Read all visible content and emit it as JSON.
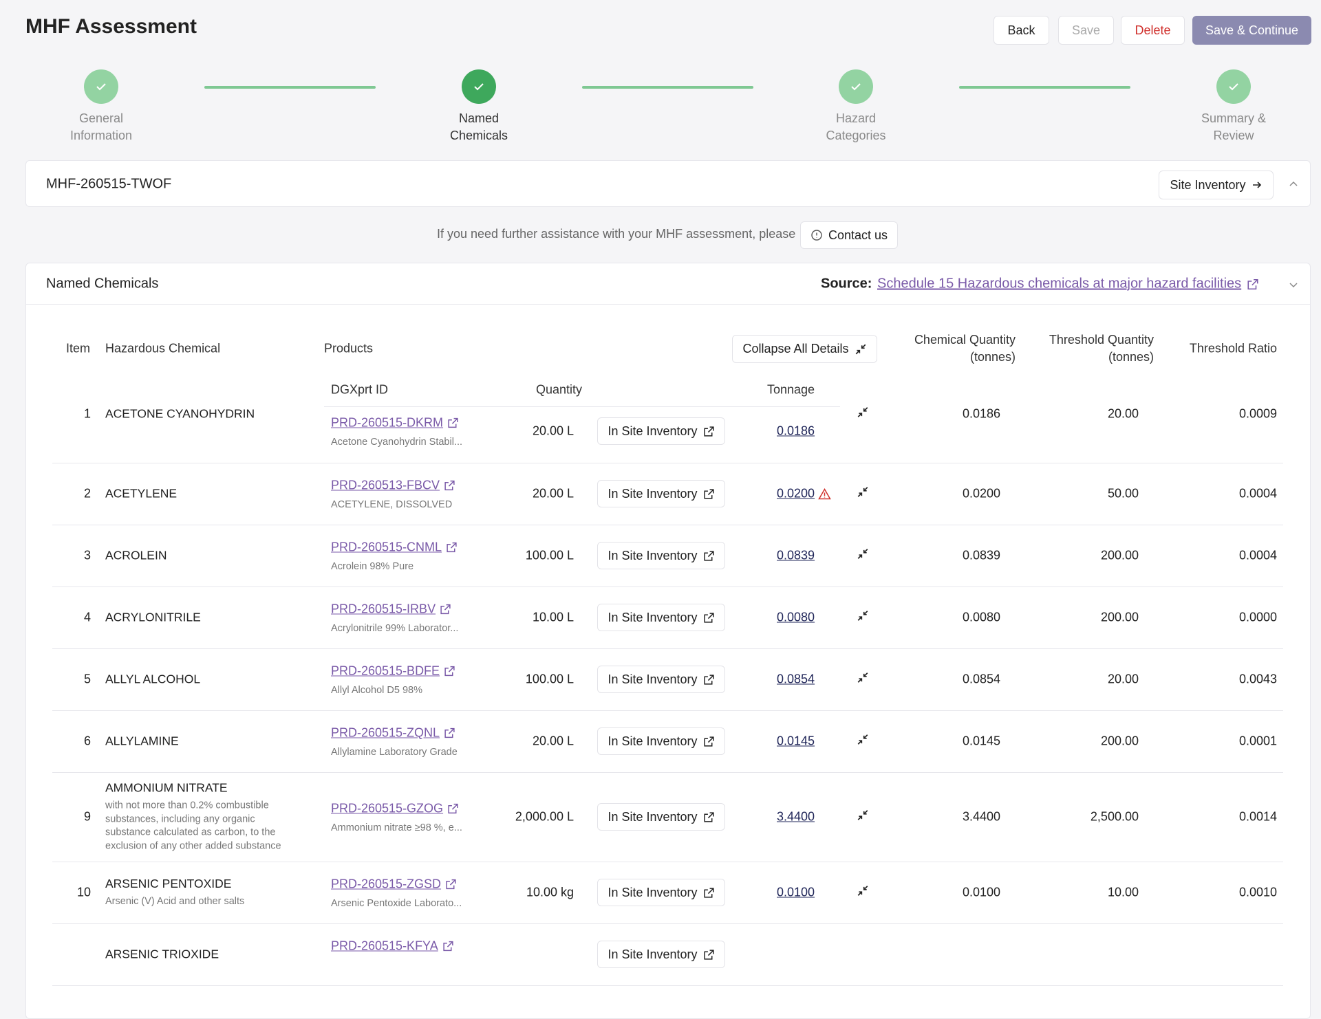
{
  "header": {
    "title": "MHF Assessment",
    "buttons": [
      "Back",
      "Save",
      "Delete",
      "Save & Continue"
    ]
  },
  "steps": [
    "General Information",
    "Named Chemicals",
    "Hazard Categories",
    "Summary & Review"
  ],
  "assessment": {
    "id": "MHF-260515-TWOF",
    "site_inventory": "Site Inventory"
  },
  "assistance": {
    "text": "If you need further assistance with your MHF assessment, please",
    "button": "Contact us"
  },
  "section": {
    "title": "Named Chemicals",
    "source_label": "Source:",
    "source_link": "Schedule 15 Hazardous chemicals at major hazard facilities"
  },
  "table": {
    "columns": [
      "Item",
      "Hazardous Chemical",
      "Products",
      "Chemical Quantity (tonnes)",
      "Threshold Quantity (tonnes)",
      "Threshold Ratio"
    ],
    "collapse_button": "Collapse All Details",
    "product_columns": [
      "DGXprt ID",
      "Quantity",
      "Tonnage"
    ],
    "inventory_label": "In Site Inventory",
    "rows": [
      {
        "item": "1",
        "chemical": "ACETONE CYANOHYDRIN",
        "product_id": "PRD-260515-DKRM",
        "product_name": "Acetone Cyanohydrin Stabil...",
        "quantity": "20.00 L",
        "tonnage": "0.0186",
        "chemical_quantity": "0.0186",
        "threshold_quantity": "20.00",
        "threshold_ratio": "0.0009"
      },
      {
        "item": "2",
        "chemical": "ACETYLENE",
        "product_id": "PRD-260513-FBCV",
        "product_name": "ACETYLENE, DISSOLVED",
        "quantity": "20.00 L",
        "tonnage": "0.0200",
        "warning": true,
        "chemical_quantity": "0.0200",
        "threshold_quantity": "50.00",
        "threshold_ratio": "0.0004"
      },
      {
        "item": "3",
        "chemical": "ACROLEIN",
        "product_id": "PRD-260515-CNML",
        "product_name": "Acrolein 98% Pure",
        "quantity": "100.00 L",
        "tonnage": "0.0839",
        "chemical_quantity": "0.0839",
        "threshold_quantity": "200.00",
        "threshold_ratio": "0.0004"
      },
      {
        "item": "4",
        "chemical": "ACRYLONITRILE",
        "product_id": "PRD-260515-IRBV",
        "product_name": "Acrylonitrile 99% Laborator...",
        "quantity": "10.00 L",
        "tonnage": "0.0080",
        "chemical_quantity": "0.0080",
        "threshold_quantity": "200.00",
        "threshold_ratio": "0.0000"
      },
      {
        "item": "5",
        "chemical": "ALLYL ALCOHOL",
        "product_id": "PRD-260515-BDFE",
        "product_name": "Allyl Alcohol D5 98%",
        "quantity": "100.00 L",
        "tonnage": "0.0854",
        "chemical_quantity": "0.0854",
        "threshold_quantity": "20.00",
        "threshold_ratio": "0.0043"
      },
      {
        "item": "6",
        "chemical": "ALLYLAMINE",
        "product_id": "PRD-260515-ZQNL",
        "product_name": "Allylamine Laboratory Grade",
        "quantity": "20.00 L",
        "tonnage": "0.0145",
        "chemical_quantity": "0.0145",
        "threshold_quantity": "200.00",
        "threshold_ratio": "0.0001"
      },
      {
        "item": "9",
        "chemical": "AMMONIUM NITRATE",
        "note": "with not more than 0.2% combustible substances, including any organic substance calculated as carbon, to the exclusion of any other added substance",
        "product_id": "PRD-260515-GZOG",
        "product_name": "Ammonium nitrate ≥98 %, e...",
        "quantity": "2,000.00 L",
        "tonnage": "3.4400",
        "chemical_quantity": "3.4400",
        "threshold_quantity": "2,500.00",
        "threshold_ratio": "0.0014"
      },
      {
        "item": "10",
        "chemical": "ARSENIC PENTOXIDE",
        "note": "Arsenic (V) Acid and other salts",
        "product_id": "PRD-260515-ZGSD",
        "product_name": "Arsenic Pentoxide Laborato...",
        "quantity": "10.00 kg",
        "tonnage": "0.0100",
        "chemical_quantity": "0.0100",
        "threshold_quantity": "10.00",
        "threshold_ratio": "0.0010"
      },
      {
        "chemical": "ARSENIC TRIOXIDE",
        "product_id": "PRD-260515-KFYA"
      }
    ]
  }
}
